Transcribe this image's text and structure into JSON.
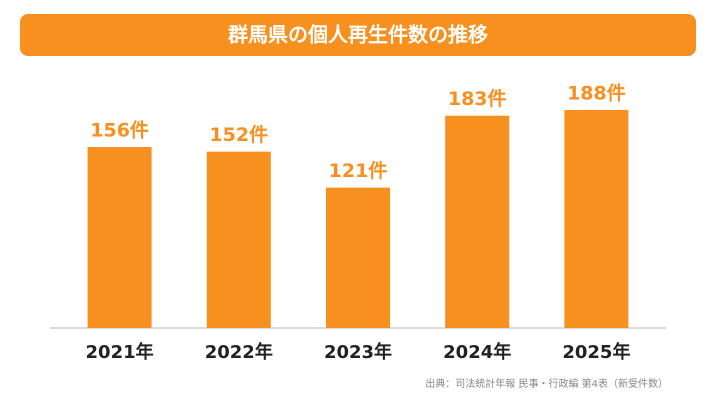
{
  "chart_data": {
    "type": "bar",
    "title": "群馬県の個人再生件数の推移",
    "categories": [
      "2021年",
      "2022年",
      "2023年",
      "2024年",
      "2025年"
    ],
    "values": [
      156,
      152,
      121,
      183,
      188
    ],
    "value_labels": [
      "156件",
      "152件",
      "121件",
      "183件",
      "188件"
    ],
    "color": "#f7901e",
    "source": "出典：司法統計年報 民事・行政編 第4表（新受件数）"
  }
}
